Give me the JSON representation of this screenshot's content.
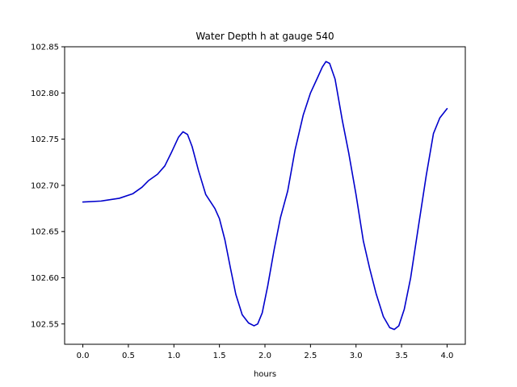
{
  "chart_data": {
    "type": "line",
    "title": "Water Depth h at gauge 540",
    "xlabel": "hours",
    "ylabel": "",
    "xlim": [
      -0.2,
      4.2
    ],
    "ylim": [
      102.528,
      102.85
    ],
    "xticks": [
      0.0,
      0.5,
      1.0,
      1.5,
      2.0,
      2.5,
      3.0,
      3.5,
      4.0
    ],
    "xtick_labels": [
      "0.0",
      "0.5",
      "1.0",
      "1.5",
      "2.0",
      "2.5",
      "3.0",
      "3.5",
      "4.0"
    ],
    "yticks": [
      102.55,
      102.6,
      102.65,
      102.7,
      102.75,
      102.8,
      102.85
    ],
    "ytick_labels": [
      "102.55",
      "102.60",
      "102.65",
      "102.70",
      "102.75",
      "102.80",
      "102.85"
    ],
    "grid": false,
    "series": [
      {
        "color": "#0000cc",
        "x": [
          0.0,
          0.2,
          0.4,
          0.55,
          0.65,
          0.72,
          0.82,
          0.9,
          0.97,
          1.05,
          1.1,
          1.15,
          1.2,
          1.27,
          1.35,
          1.45,
          1.5,
          1.56,
          1.62,
          1.68,
          1.75,
          1.82,
          1.88,
          1.92,
          1.97,
          2.03,
          2.1,
          2.17,
          2.25,
          2.33,
          2.42,
          2.5,
          2.57,
          2.63,
          2.67,
          2.71,
          2.77,
          2.85,
          2.92,
          3.0,
          3.08,
          3.15,
          3.22,
          3.3,
          3.37,
          3.42,
          3.47,
          3.53,
          3.6,
          3.68,
          3.77,
          3.85,
          3.92,
          4.0
        ],
        "y": [
          102.682,
          102.683,
          102.686,
          102.691,
          102.698,
          102.705,
          102.712,
          102.721,
          102.735,
          102.752,
          102.758,
          102.755,
          102.742,
          102.716,
          102.69,
          102.675,
          102.664,
          102.641,
          102.611,
          102.582,
          102.56,
          102.551,
          102.548,
          102.55,
          102.562,
          102.591,
          102.63,
          102.665,
          102.694,
          102.738,
          102.776,
          102.8,
          102.815,
          102.828,
          102.834,
          102.832,
          102.815,
          102.77,
          102.735,
          102.69,
          102.64,
          102.61,
          102.583,
          102.558,
          102.546,
          102.544,
          102.548,
          102.566,
          102.6,
          102.652,
          102.71,
          102.756,
          102.773,
          102.783
        ]
      }
    ]
  }
}
